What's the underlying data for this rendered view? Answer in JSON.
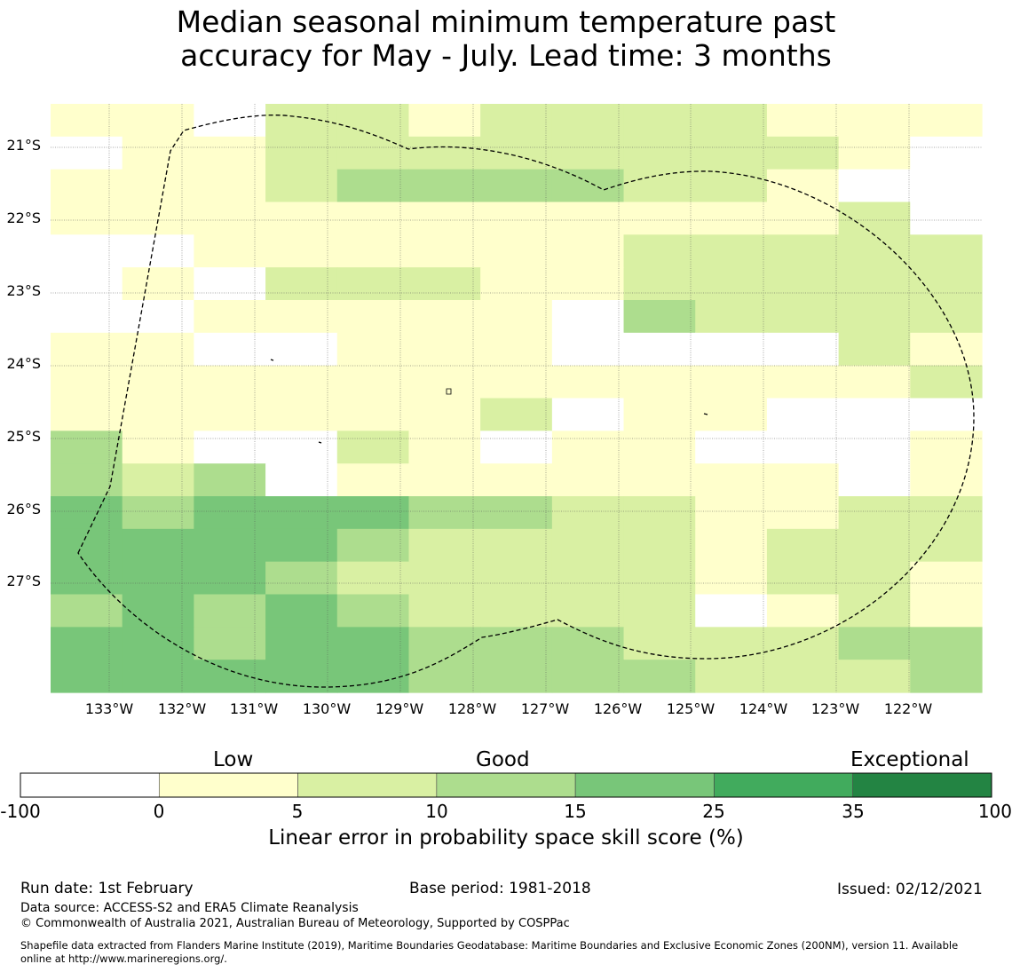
{
  "title": {
    "line1": "Median seasonal minimum temperature past",
    "line2": "accuracy for May - July. Lead time: 3 months"
  },
  "map": {
    "lat_labels": [
      "21°S",
      "22°S",
      "23°S",
      "24°S",
      "25°S",
      "26°S",
      "27°S"
    ],
    "lon_labels": [
      "133°W",
      "132°W",
      "131°W",
      "130°W",
      "129°W",
      "128°W",
      "127°W",
      "126°W",
      "125°W",
      "124°W",
      "123°W",
      "122°W"
    ],
    "category_colors": [
      "#ffffff",
      "#ffffcc",
      "#d9f0a3",
      "#addd8e",
      "#78c679",
      "#41ab5d",
      "#238443"
    ],
    "grid": [
      "1102212222111",
      "0112222222210",
      "1112333322100",
      "1111111111120",
      "0011111122222",
      "0102221122222",
      "0011111032222",
      "1100111000021",
      "1111111111112",
      "1111112011000",
      "3100210110001",
      "3230111111101",
      "4344433221122",
      "4444322221222",
      "4443222221221",
      "3434322220121",
      "4434433322233",
      "4444433332223"
    ]
  },
  "colorbar": {
    "categories": [
      "Low",
      "Good",
      "Exceptional"
    ],
    "ticks": [
      "-100",
      "0",
      "5",
      "10",
      "15",
      "25",
      "35",
      "100"
    ],
    "label": "Linear error in probability space skill score (%)"
  },
  "footer": {
    "run_date": "Run date: 1st February",
    "base_period": "Base period: 1981-2018",
    "issued": "Issued: 02/12/2021",
    "data_source": "Data source: ACCESS-S2 and ERA5 Climate Reanalysis",
    "copyright": "© Commonwealth of Australia 2021, Australian Bureau of Meteorology, Supported by COSPPac",
    "shapefile_line1": "Shapefile data extracted from Flanders Marine Institute (2019), Maritime Boundaries Geodatabase: Maritime Boundaries and Exclusive Economic Zones (200NM), version 11. Available",
    "shapefile_line2": "online at http://www.marineregions.org/."
  }
}
